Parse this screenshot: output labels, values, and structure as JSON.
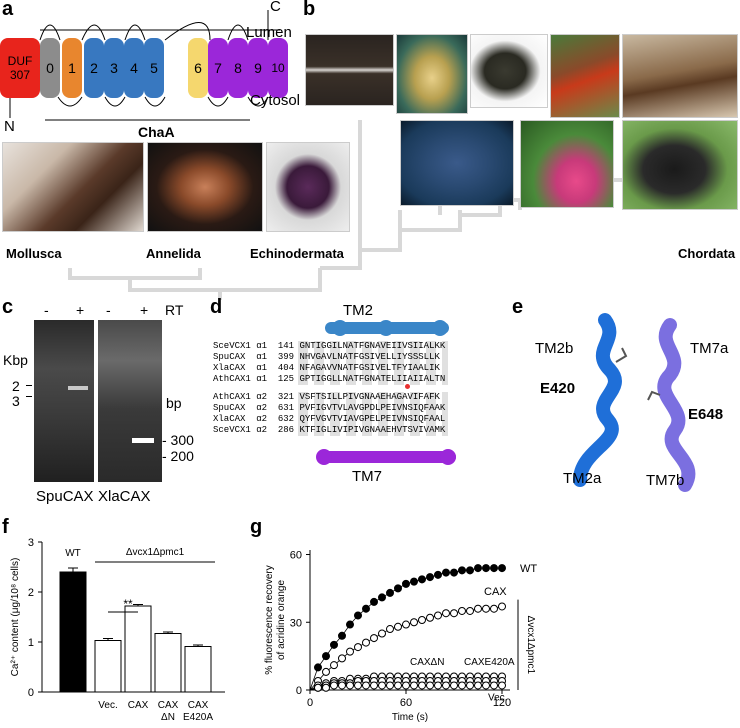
{
  "panel_a": {
    "label": "a",
    "duf_label_1": "DUF",
    "duf_label_2": "307",
    "segments": [
      "0",
      "1",
      "2",
      "3",
      "4",
      "5",
      "6",
      "7",
      "8",
      "9",
      "10"
    ],
    "c_label": "C",
    "n_label": "N",
    "lumen": "Lumen",
    "cytosol": "Cytosol",
    "chaa": "ChaA",
    "taxa": [
      "Mollusca",
      "Annelida",
      "Echinodermata"
    ],
    "colors": {
      "duf": "#e8241c",
      "seg0": "#8c8c8c",
      "seg1": "#e8862e",
      "blue": "#3878c0",
      "yellow": "#f5d76e",
      "purple": "#9b27d9"
    }
  },
  "panel_b": {
    "label": "b",
    "taxon": "Chordata"
  },
  "panel_c": {
    "label": "c",
    "lane_signs": [
      "-",
      "+",
      "-",
      "+"
    ],
    "rt": "RT",
    "kbp": "Kbp",
    "kbp_marks": [
      "2",
      "3"
    ],
    "bp": "bp",
    "bp_marks": [
      "- 300",
      "- 200"
    ],
    "gels": [
      "SpuCAX",
      "XlaCAX"
    ]
  },
  "panel_d": {
    "label": "d",
    "tm2": "TM2",
    "tm7": "TM7",
    "rows_alpha1": [
      {
        "name": "SceVCX1",
        "sub": "α1",
        "pos": "141",
        "seq": "GNTIGGILNATFGNAVEIIVSIIALKK"
      },
      {
        "name": "SpuCAX",
        "sub": "α1",
        "pos": "399",
        "seq": "NHVGAVLNATFGSIVELLIYSSSLLK"
      },
      {
        "name": "XlaCAX",
        "sub": "α1",
        "pos": "404",
        "seq": "NFAGAVVNATFGSIVELTFYIAALIK"
      },
      {
        "name": "AthCAX1",
        "sub": "α1",
        "pos": "125",
        "seq": "GPTIGGLLNATFGNATELIIAIIALTN"
      }
    ],
    "rows_alpha2": [
      {
        "name": "AthCAX1",
        "sub": "α2",
        "pos": "321",
        "seq": "VSFTSILLPIVGNAAEHAGAVIFAFK"
      },
      {
        "name": "SpuCAX",
        "sub": "α2",
        "pos": "631",
        "seq": "PVFIGVTVLAVGPDLPEIVNSIQFAAK"
      },
      {
        "name": "XlaCAX",
        "sub": "α2",
        "pos": "632",
        "seq": "QYFVGVTVIAVGPELPEIVNSIQFAAL"
      },
      {
        "name": "SceVCX1",
        "sub": "α2",
        "pos": "286",
        "seq": "KTFIGLIVIPIVGNAAEHVTSVIVAMK"
      }
    ],
    "colors": {
      "tm2": "#3a86c8",
      "tm7": "#9b27d9"
    }
  },
  "panel_e": {
    "label": "e",
    "labels": [
      "TM2b",
      "E420",
      "TM2a",
      "TM7a",
      "E648",
      "TM7b"
    ],
    "colors": {
      "tm2": "#1f6fd8",
      "tm7": "#7b6fe0"
    }
  },
  "panel_f": {
    "label": "f",
    "wt": "WT",
    "strain": "Δvcx1Δpmc1",
    "sig": "**",
    "ylabel": "Ca²⁺ content (μg/10⁸ cells)"
  },
  "panel_g": {
    "label": "g",
    "ylabel_1": "% fluorescence recovery",
    "ylabel_2": "of acridine orange",
    "xlabel": "Time (s)",
    "strain": "Δvcx1Δpmc1",
    "series_labels": [
      "WT",
      "CAX",
      "CAXΔN",
      "CAXE420A",
      "Vec."
    ]
  },
  "chart_data": [
    {
      "type": "bar",
      "categories": [
        "WT",
        "Vec.",
        "CAX",
        "CAX ΔN",
        "CAX E420A"
      ],
      "values": [
        2.4,
        1.03,
        1.72,
        1.17,
        0.91
      ],
      "errors": [
        0.08,
        0.04,
        0.03,
        0.03,
        0.03
      ],
      "ylabel": "Ca²⁺ content (μg/10⁸ cells)",
      "ylim": [
        0,
        3
      ],
      "yticks": [
        "0",
        "1",
        "2",
        "3"
      ],
      "colors": [
        "#000000",
        "#ffffff",
        "#ffffff",
        "#ffffff",
        "#ffffff"
      ]
    },
    {
      "type": "scatter",
      "x": [
        0,
        5,
        10,
        15,
        20,
        25,
        30,
        35,
        40,
        45,
        50,
        55,
        60,
        65,
        70,
        75,
        80,
        85,
        90,
        95,
        100,
        105,
        110,
        115,
        120
      ],
      "series": [
        {
          "name": "WT",
          "values": [
            0,
            10,
            15,
            20,
            24,
            29,
            33,
            36,
            39,
            41,
            43,
            45,
            47,
            48,
            49,
            50,
            51,
            52,
            52,
            53,
            53,
            54,
            54,
            54,
            54
          ],
          "filled": true
        },
        {
          "name": "CAX",
          "values": [
            0,
            4,
            8,
            11,
            14,
            17,
            19,
            21,
            23,
            25,
            27,
            28,
            29,
            30,
            31,
            32,
            33,
            34,
            34,
            35,
            35,
            36,
            36,
            36,
            37
          ],
          "filled": false
        },
        {
          "name": "CAXE420A",
          "values": [
            0,
            2,
            3,
            4,
            4,
            5,
            5,
            5,
            6,
            6,
            6,
            6,
            6,
            6,
            6,
            6,
            6,
            6,
            6,
            6,
            6,
            6,
            6,
            6,
            6
          ],
          "filled": false
        },
        {
          "name": "CAXΔN",
          "values": [
            0,
            1,
            2,
            3,
            3,
            3,
            4,
            4,
            4,
            4,
            4,
            4,
            4,
            4,
            4,
            4,
            4,
            4,
            4,
            4,
            4,
            4,
            4,
            4,
            4
          ],
          "filled": false
        },
        {
          "name": "Vec.",
          "values": [
            0,
            1,
            1,
            2,
            2,
            2,
            2,
            2,
            2,
            2,
            2,
            2,
            2,
            2,
            2,
            2,
            2,
            2,
            2,
            2,
            2,
            2,
            2,
            2,
            2
          ],
          "filled": false
        }
      ],
      "xlabel": "Time (s)",
      "ylabel": "% fluorescence recovery of acridine orange",
      "xlim": [
        0,
        125
      ],
      "ylim": [
        0,
        62
      ],
      "xticks": [
        "0",
        "60",
        "120"
      ],
      "yticks": [
        "0",
        "30",
        "60"
      ]
    }
  ]
}
